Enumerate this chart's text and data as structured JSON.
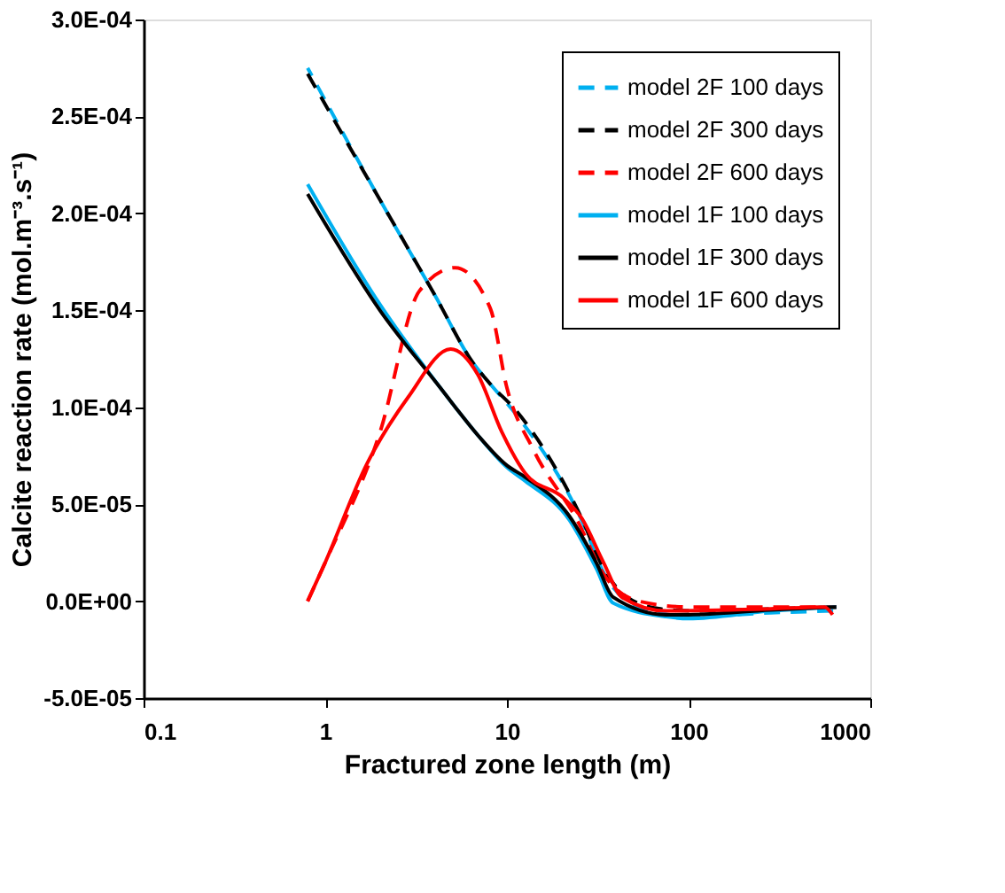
{
  "chart_data": {
    "type": "line",
    "xlabel": "Fractured zone length (m)",
    "ylabel": "Calcite reaction rate (mol.m⁻³.s⁻¹)",
    "log": "x",
    "xlim": [
      0.1,
      1000
    ],
    "xticks": [
      0.1,
      1,
      10,
      100,
      1000
    ],
    "ylim": [
      -5e-05,
      0.0003
    ],
    "yticks": [
      {
        "value": -5e-05,
        "label": "-5.0E-05"
      },
      {
        "value": 0,
        "label": "0.0E+00"
      },
      {
        "value": 5e-05,
        "label": "5.0E-05"
      },
      {
        "value": 0.0001,
        "label": "1.0E-04"
      },
      {
        "value": 0.00015,
        "label": "1.5E-04"
      },
      {
        "value": 0.0002,
        "label": "2.0E-04"
      },
      {
        "value": 0.00025,
        "label": "2.5E-04"
      },
      {
        "value": 0.0003,
        "label": "3.0E-04"
      }
    ],
    "grid": false,
    "legend": "top right",
    "marker": "none",
    "series": [
      {
        "name": "model 2F 100 days",
        "color": "#00b0f0",
        "line_style": "dashed",
        "x": [
          0.8,
          2,
          4,
          6.5,
          8.1,
          11.3,
          25.7,
          34.4,
          45.9,
          70,
          100,
          283,
          650
        ],
        "values": [
          0.000275,
          0.000207,
          0.000158,
          0.000123,
          0.000112,
          9.6e-05,
          4.2e-05,
          1.4e-05,
          0.0,
          -6e-06,
          -8e-06,
          -6e-06,
          -5e-06
        ]
      },
      {
        "name": "model 2F 300 days",
        "color": "#000000",
        "line_style": "dashed",
        "x": [
          0.8,
          2,
          4,
          6.5,
          8.1,
          11.3,
          25.7,
          34.4,
          45.9,
          70,
          100,
          283,
          650
        ],
        "values": [
          0.000272,
          0.000207,
          0.000158,
          0.000123,
          0.000112,
          9.8e-05,
          4.3e-05,
          1.6e-05,
          2e-06,
          -4e-06,
          -5e-06,
          -4e-06,
          -3e-06
        ]
      },
      {
        "name": "model 2F 600 days",
        "color": "#ff0000",
        "line_style": "dashed",
        "x": [
          0.8,
          1,
          2,
          3.3,
          5.2,
          8.1,
          10,
          14,
          24.6,
          34,
          53,
          100,
          283,
          650
        ],
        "values": [
          0.0,
          2e-05,
          8.7e-05,
          0.00016,
          0.000172,
          0.000151,
          0.00011,
          7.8e-05,
          4.1e-05,
          1.4e-05,
          0.0,
          -3e-06,
          -3e-06,
          -3e-06
        ]
      },
      {
        "name": "model 1F 100 days",
        "color": "#00b0f0",
        "line_style": "solid",
        "x": [
          0.8,
          2,
          4.3,
          5.2,
          7,
          10,
          12.6,
          22,
          31,
          38.5,
          75,
          100,
          283,
          650
        ],
        "values": [
          0.000215,
          0.000153,
          0.00011,
          0.0001,
          8.5e-05,
          6.9e-05,
          6.2e-05,
          4.2e-05,
          1.7e-05,
          -1e-06,
          -8e-06,
          -9e-06,
          -5e-06,
          -3e-06
        ]
      },
      {
        "name": "model 1F 300 days",
        "color": "#000000",
        "line_style": "solid",
        "x": [
          0.8,
          2,
          4.3,
          5.2,
          7,
          10,
          12.6,
          22,
          31,
          38.5,
          75,
          100,
          283,
          650
        ],
        "values": [
          0.00021,
          0.00015,
          0.00011,
          0.0001,
          8.5e-05,
          7e-05,
          6.4e-05,
          4.4e-05,
          2e-05,
          2e-06,
          -7e-06,
          -7e-06,
          -4.5e-06,
          -3e-06
        ]
      },
      {
        "name": "model 1F 600 days",
        "color": "#ff0000",
        "line_style": "solid",
        "x": [
          0.8,
          1,
          1.7,
          2.85,
          4.9,
          6.9,
          9.4,
          12.6,
          20.6,
          25.7,
          34,
          43,
          75,
          283,
          560,
          620
        ],
        "values": [
          0.0,
          2e-05,
          7.1e-05,
          0.000105,
          0.00013,
          0.000117,
          8.7e-05,
          6.6e-05,
          5.3e-05,
          4.3e-05,
          2e-05,
          2e-06,
          -5e-06,
          -4e-06,
          -3e-06,
          -7e-06
        ]
      }
    ]
  }
}
